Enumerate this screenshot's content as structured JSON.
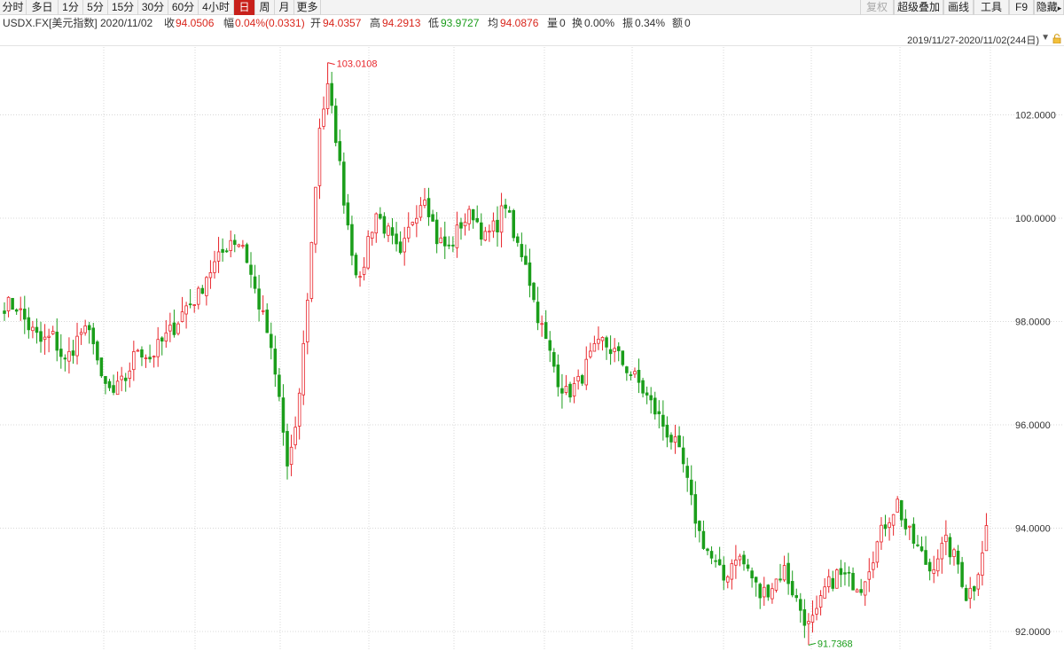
{
  "toolbar": {
    "left_items": [
      "分时",
      "多日",
      "1分",
      "5分",
      "15分",
      "30分",
      "60分",
      "4小时",
      "日",
      "周",
      "月",
      "更多"
    ],
    "active_item": "日",
    "right_items": [
      "复权",
      "超级叠加",
      "画线",
      "工具",
      "F9",
      "隐藏"
    ],
    "disabled_item": "复权",
    "hide_arrow_glyph": "▸"
  },
  "info": {
    "symbol": "USDX.FX[美元指数]",
    "date": "2020/11/02",
    "close_label": "收",
    "close_value": "94.0506",
    "change_label": "幅",
    "change_value": "0.04%(0.0331)",
    "open_label": "开",
    "open_value": "94.0357",
    "high_label": "高",
    "high_value": "94.2913",
    "low_label": "低",
    "low_value": "93.9727",
    "avg_label": "均",
    "avg_value": "94.0876",
    "volume_label": "量",
    "volume_value": "0",
    "turnover_label": "换",
    "turnover_value": "0.00%",
    "amplitude_label": "振",
    "amplitude_value": "0.34%",
    "amount_label": "额",
    "amount_value": "0"
  },
  "range": {
    "text": "2019/11/27-2020/11/02(244日)",
    "arrow_glyph": "▼",
    "lock_icon": "lock-icon"
  },
  "colors": {
    "up": "#e8242a",
    "down": "#1b9e1b",
    "grid": "#d8d8d8",
    "active_tab": "#c8201b"
  },
  "chart_data": {
    "type": "candlestick",
    "y_ticks": [
      "102.0000",
      "100.0000",
      "98.0000",
      "96.0000",
      "94.0000",
      "92.0000"
    ],
    "ylim": [
      91.7,
      103.1
    ],
    "grid": true,
    "bar_count": 244,
    "period": "2019/11/27-2020/11/02",
    "annotations": [
      {
        "label": "103.0108",
        "kind": "high"
      },
      {
        "label": "91.7368",
        "kind": "low"
      }
    ],
    "last": {
      "open": 94.0357,
      "high": 94.2913,
      "low": 93.9727,
      "close": 94.0506
    },
    "close_path": [
      [
        0,
        98.33
      ],
      [
        3,
        98.3
      ],
      [
        6,
        97.9
      ],
      [
        9,
        97.6
      ],
      [
        12,
        97.7
      ],
      [
        15,
        97.2
      ],
      [
        17,
        97.5
      ],
      [
        19,
        97.8
      ],
      [
        22,
        97.7
      ],
      [
        24,
        96.8
      ],
      [
        27,
        96.6
      ],
      [
        30,
        96.9
      ],
      [
        33,
        97.5
      ],
      [
        36,
        97.3
      ],
      [
        39,
        97.6
      ],
      [
        42,
        97.9
      ],
      [
        45,
        98.3
      ],
      [
        48,
        98.5
      ],
      [
        50,
        98.9
      ],
      [
        53,
        99.2
      ],
      [
        56,
        99.6
      ],
      [
        59,
        99.5
      ],
      [
        62,
        98.6
      ],
      [
        65,
        97.8
      ],
      [
        68,
        96.5
      ],
      [
        70,
        95.2
      ],
      [
        72,
        95.8
      ],
      [
        74,
        97.5
      ],
      [
        76,
        99.5
      ],
      [
        78,
        101.8
      ],
      [
        80,
        102.5
      ],
      [
        82,
        101.6
      ],
      [
        84,
        100.4
      ],
      [
        86,
        99.4
      ],
      [
        88,
        98.7
      ],
      [
        90,
        99.6
      ],
      [
        92,
        100.1
      ],
      [
        95,
        99.7
      ],
      [
        98,
        99.2
      ],
      [
        101,
        100.0
      ],
      [
        104,
        100.5
      ],
      [
        107,
        99.6
      ],
      [
        110,
        99.4
      ],
      [
        113,
        99.9
      ],
      [
        116,
        100.1
      ],
      [
        119,
        99.6
      ],
      [
        122,
        99.9
      ],
      [
        124,
        100.3
      ],
      [
        126,
        99.6
      ],
      [
        129,
        99.2
      ],
      [
        131,
        98.4
      ],
      [
        134,
        97.6
      ],
      [
        137,
        96.9
      ],
      [
        139,
        96.6
      ],
      [
        142,
        96.8
      ],
      [
        145,
        97.3
      ],
      [
        148,
        97.6
      ],
      [
        151,
        97.4
      ],
      [
        154,
        97.1
      ],
      [
        157,
        96.8
      ],
      [
        160,
        96.4
      ],
      [
        163,
        96.0
      ],
      [
        166,
        95.6
      ],
      [
        168,
        95.2
      ],
      [
        170,
        94.5
      ],
      [
        172,
        93.9
      ],
      [
        175,
        93.4
      ],
      [
        178,
        93.0
      ],
      [
        181,
        93.5
      ],
      [
        184,
        93.2
      ],
      [
        187,
        92.7
      ],
      [
        190,
        92.9
      ],
      [
        193,
        93.2
      ],
      [
        196,
        92.6
      ],
      [
        199,
        92.1
      ],
      [
        201,
        92.3
      ],
      [
        203,
        92.8
      ],
      [
        206,
        93.1
      ],
      [
        209,
        93.0
      ],
      [
        212,
        92.9
      ],
      [
        215,
        93.5
      ],
      [
        218,
        94.1
      ],
      [
        221,
        94.5
      ],
      [
        223,
        94.0
      ],
      [
        226,
        93.6
      ],
      [
        229,
        93.2
      ],
      [
        231,
        93.5
      ],
      [
        233,
        93.7
      ],
      [
        236,
        93.3
      ],
      [
        238,
        92.7
      ],
      [
        240,
        92.9
      ],
      [
        242,
        93.6
      ],
      [
        243,
        94.05
      ]
    ]
  }
}
